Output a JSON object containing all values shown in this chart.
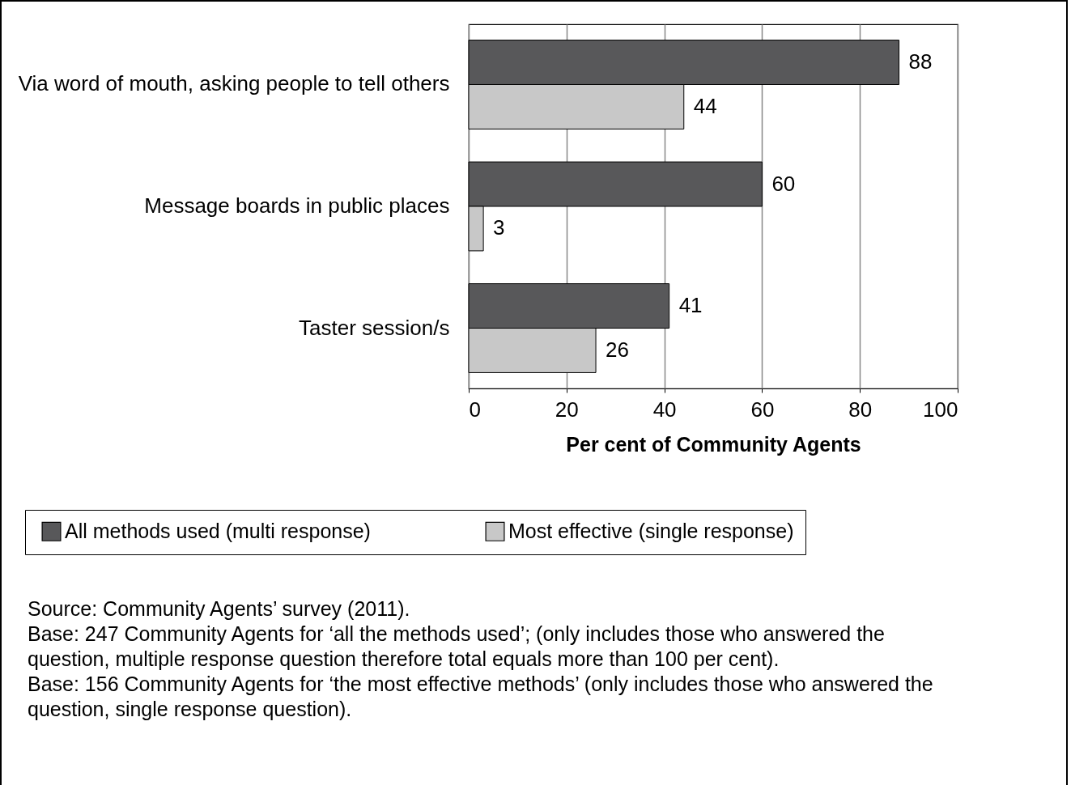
{
  "chart_data": {
    "type": "bar",
    "orientation": "horizontal",
    "categories": [
      "Via word of mouth, asking people to tell others",
      "Message boards in public places",
      "Taster session/s"
    ],
    "series": [
      {
        "name": "All methods used (multi response)",
        "color": "#58585a",
        "values": [
          88,
          60,
          41
        ]
      },
      {
        "name": "Most effective (single response)",
        "color": "#c8c8c8",
        "values": [
          44,
          3,
          26
        ]
      }
    ],
    "xlabel": "Per cent of Community Agents",
    "xlim": [
      0,
      100
    ],
    "xticks": [
      0,
      20,
      40,
      60,
      80,
      100
    ],
    "grid": "x",
    "data_labels": true,
    "legend": "bottom",
    "annotations": [
      "Source: Community Agents’ survey (2011).",
      "Base: 247 Community Agents for ‘all the methods used’; (only includes those who answered the question, multiple response question therefore total equals more than 100 per cent).",
      "Base: 156 Community Agents for ‘the most effective methods’ (only includes those who answered the question, single response question)."
    ]
  }
}
